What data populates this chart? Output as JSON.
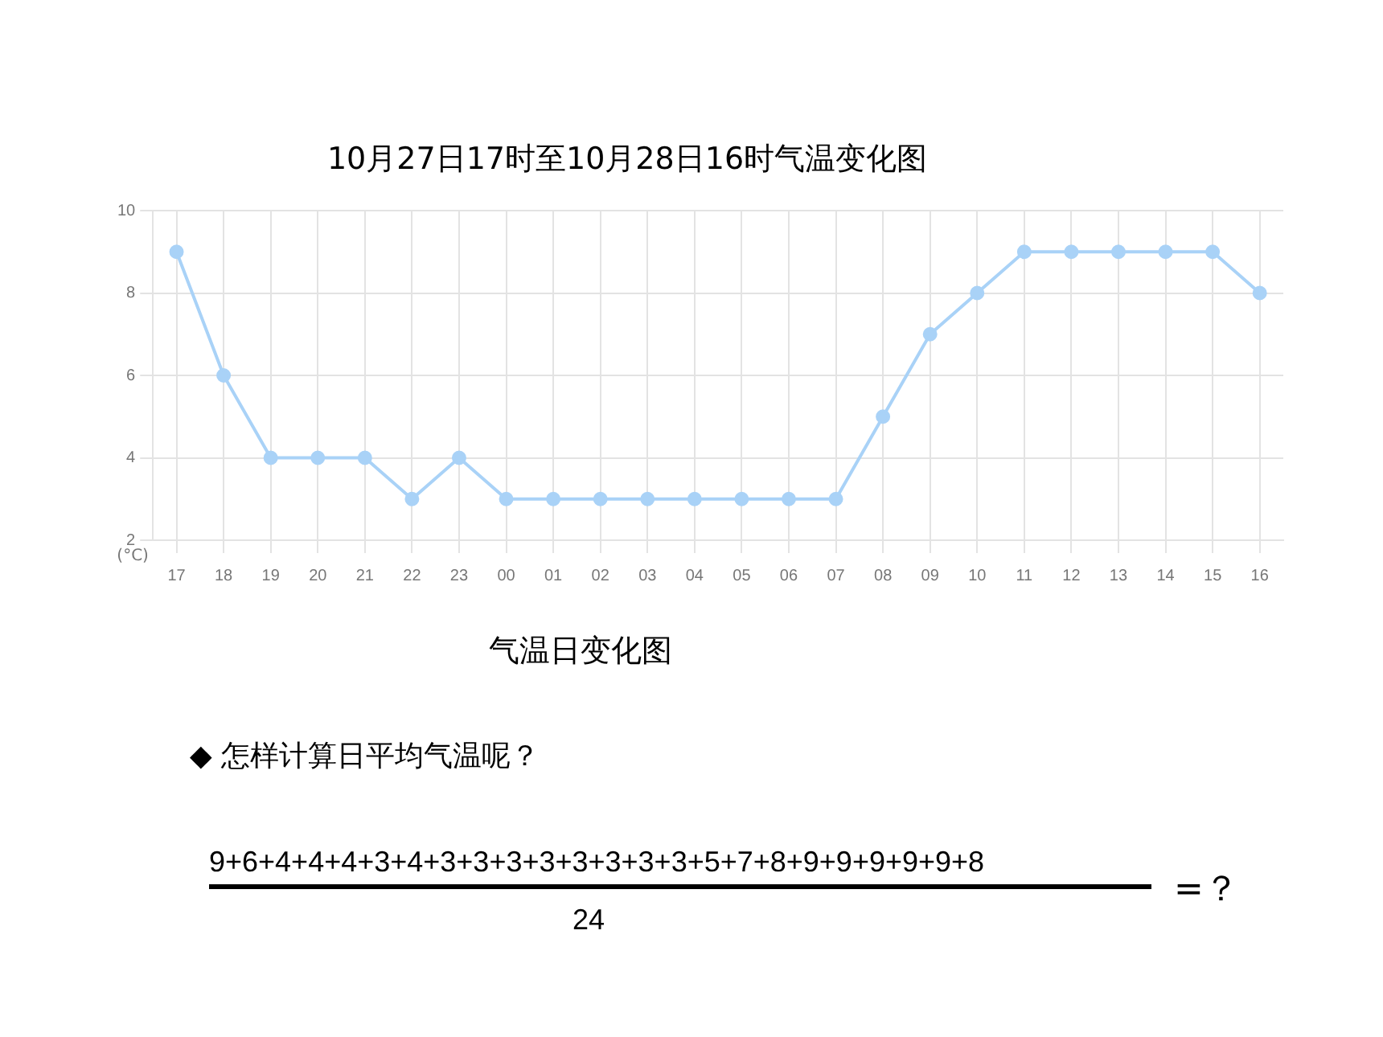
{
  "chart_data": {
    "type": "line",
    "title": "10月27日17时至10月28日16时气温变化图",
    "ylabel": "(°C)",
    "categories": [
      "17",
      "18",
      "19",
      "20",
      "21",
      "22",
      "23",
      "00",
      "01",
      "02",
      "03",
      "04",
      "05",
      "06",
      "07",
      "08",
      "09",
      "10",
      "11",
      "12",
      "13",
      "14",
      "15",
      "16"
    ],
    "series": [
      {
        "color": "#a9d2f7",
        "values": [
          9,
          6,
          4,
          4,
          4,
          3,
          4,
          3,
          3,
          3,
          3,
          3,
          3,
          3,
          3,
          5,
          7,
          8,
          9,
          9,
          9,
          9,
          9,
          8
        ]
      }
    ],
    "ylim": [
      2,
      10
    ],
    "yticks": [
      2,
      4,
      6,
      8,
      10
    ],
    "grid": true,
    "legend": false,
    "marker": "circle",
    "line_style": "solid",
    "annotations": [
      "气温日变化图",
      "◆ 怎样计算日平均气温呢？",
      "9+6+4+4+4+3+4+3+3+3+3+3+3+3+3+5+7+8+9+9+9+9+9+8",
      "24",
      "=？"
    ]
  }
}
